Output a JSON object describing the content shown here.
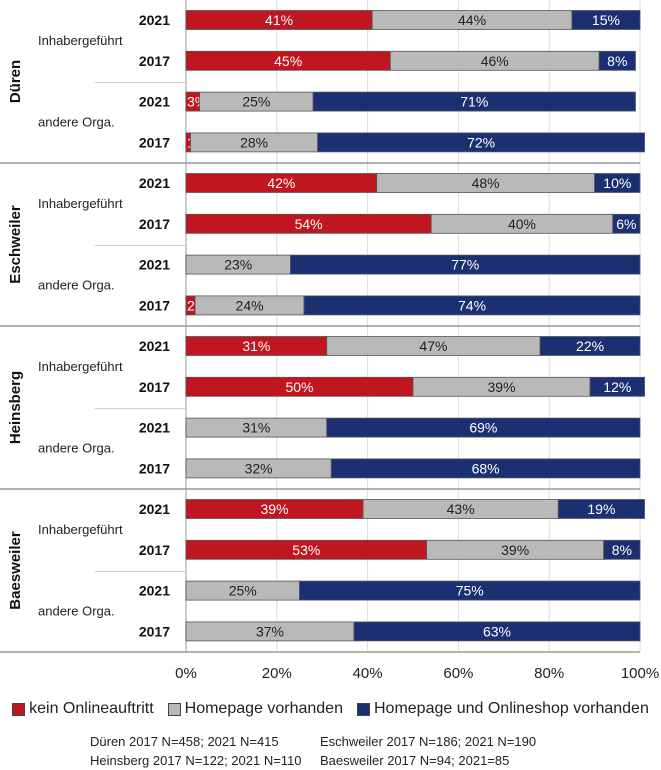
{
  "chart_data": {
    "type": "bar",
    "orientation": "horizontal",
    "stacked": true,
    "xlim": [
      0,
      100
    ],
    "xticks": [
      "0%",
      "20%",
      "40%",
      "60%",
      "80%",
      "100%"
    ],
    "grid": true,
    "legend_position": "bottom",
    "series": [
      {
        "name": "kein Onlineauftritt",
        "color": "#c0161f"
      },
      {
        "name": "Homepage vorhanden",
        "color": "#b9b9b9"
      },
      {
        "name": "Homepage und Onlineshop vorhanden",
        "color": "#1b2f73"
      }
    ],
    "groups": [
      {
        "city": "Düren",
        "subgroups": [
          {
            "label": "Inhabergeführt",
            "rows": [
              {
                "year": "2021",
                "values": [
                  41,
                  44,
                  15
                ]
              },
              {
                "year": "2017",
                "values": [
                  45,
                  46,
                  8
                ]
              }
            ]
          },
          {
            "label": "andere Orga.",
            "rows": [
              {
                "year": "2021",
                "values": [
                  3,
                  25,
                  71
                ]
              },
              {
                "year": "2017",
                "values": [
                  1,
                  28,
                  72
                ]
              }
            ]
          }
        ]
      },
      {
        "city": "Eschweiler",
        "subgroups": [
          {
            "label": "Inhabergeführt",
            "rows": [
              {
                "year": "2021",
                "values": [
                  42,
                  48,
                  10
                ]
              },
              {
                "year": "2017",
                "values": [
                  54,
                  40,
                  6
                ]
              }
            ]
          },
          {
            "label": "andere Orga.",
            "rows": [
              {
                "year": "2021",
                "values": [
                  0,
                  23,
                  77
                ]
              },
              {
                "year": "2017",
                "values": [
                  2,
                  24,
                  74
                ]
              }
            ]
          }
        ]
      },
      {
        "city": "Heinsberg",
        "subgroups": [
          {
            "label": "Inhabergeführt",
            "rows": [
              {
                "year": "2021",
                "values": [
                  31,
                  47,
                  22
                ]
              },
              {
                "year": "2017",
                "values": [
                  50,
                  39,
                  12
                ]
              }
            ]
          },
          {
            "label": "andere Orga.",
            "rows": [
              {
                "year": "2021",
                "values": [
                  0,
                  31,
                  69
                ]
              },
              {
                "year": "2017",
                "values": [
                  0,
                  32,
                  68
                ]
              }
            ]
          }
        ]
      },
      {
        "city": "Baesweiler",
        "subgroups": [
          {
            "label": "Inhabergeführt",
            "rows": [
              {
                "year": "2021",
                "values": [
                  39,
                  43,
                  19
                ]
              },
              {
                "year": "2017",
                "values": [
                  53,
                  39,
                  8
                ]
              }
            ]
          },
          {
            "label": "andere Orga.",
            "rows": [
              {
                "year": "2021",
                "values": [
                  0,
                  25,
                  75
                ]
              },
              {
                "year": "2017",
                "values": [
                  0,
                  37,
                  63
                ]
              }
            ]
          }
        ]
      }
    ],
    "notes": [
      "Düren 2017 N=458; 2021 N=415",
      "Eschweiler 2017 N=186; 2021 N=190",
      "Heinsberg 2017 N=122; 2021 N=110",
      "Baesweiler 2017 N=94; 2021=85"
    ]
  }
}
